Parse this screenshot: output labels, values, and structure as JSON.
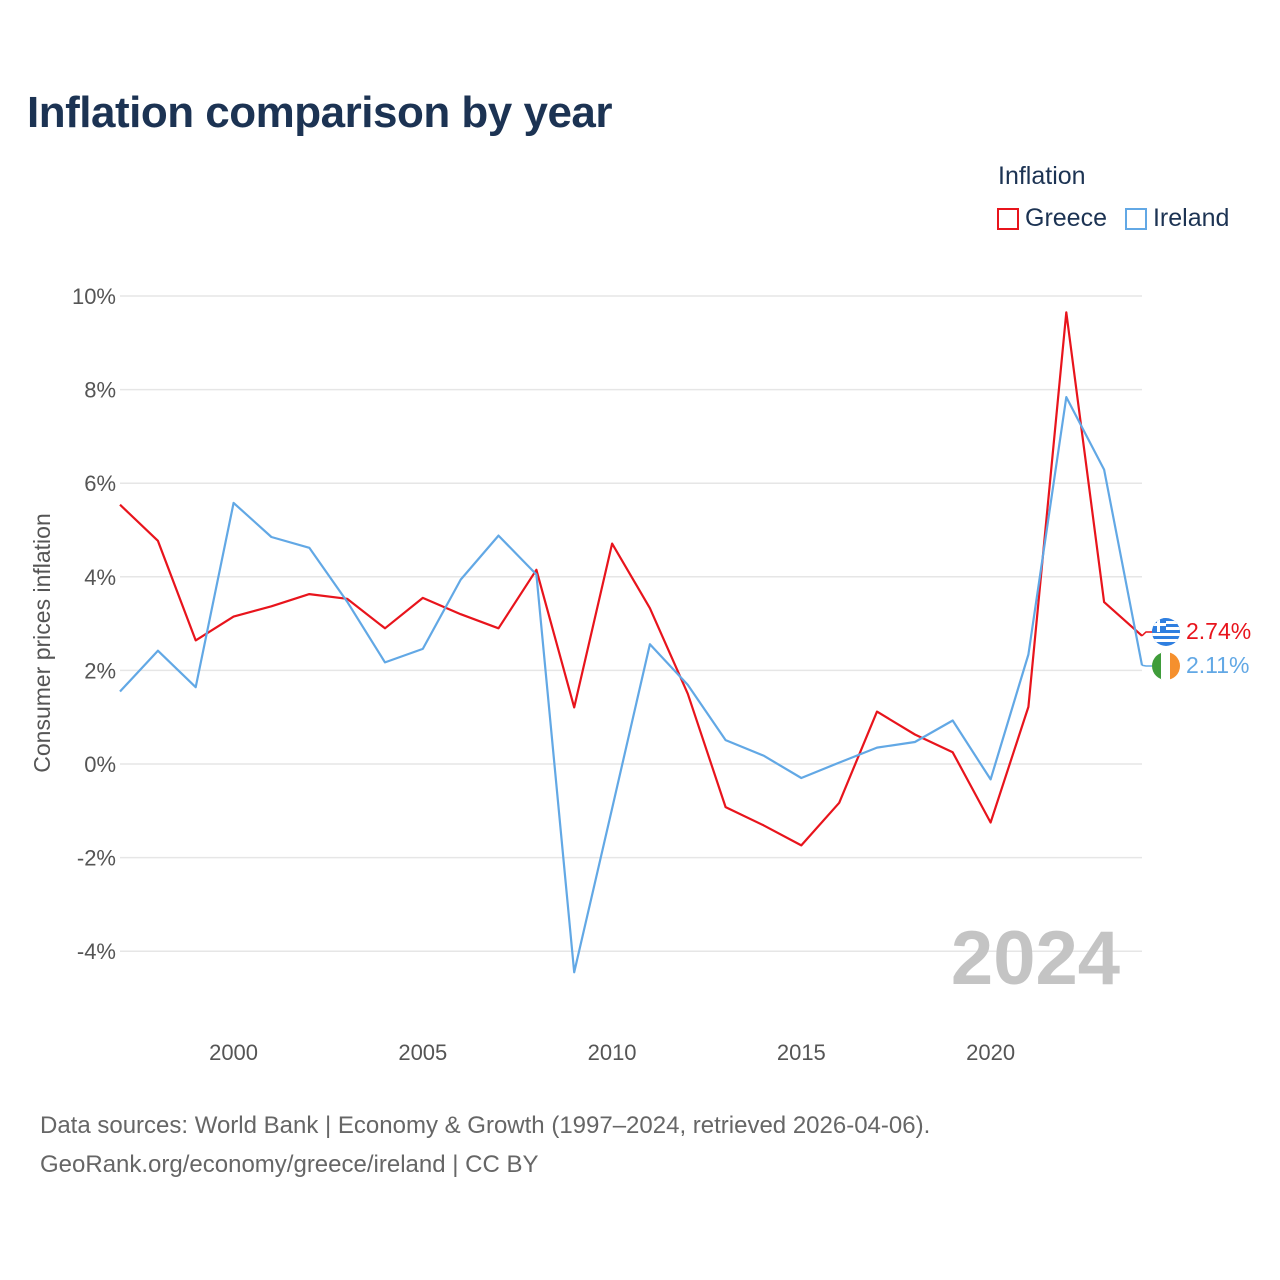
{
  "chart_data": {
    "type": "line",
    "title": "Inflation comparison by year",
    "legend_title": "Inflation",
    "ylabel": "Consumer prices inflation",
    "xlabel": "",
    "x": [
      1997,
      1998,
      1999,
      2000,
      2001,
      2002,
      2003,
      2004,
      2005,
      2006,
      2007,
      2008,
      2009,
      2010,
      2011,
      2012,
      2013,
      2014,
      2015,
      2016,
      2017,
      2018,
      2019,
      2020,
      2021,
      2022,
      2023,
      2024
    ],
    "xlim": [
      1997,
      2024
    ],
    "ylim": [
      -5,
      10
    ],
    "yticks": [
      10,
      8,
      6,
      4,
      2,
      0,
      -2,
      -4
    ],
    "ytick_labels": [
      "10%",
      "8%",
      "6%",
      "4%",
      "2%",
      "0%",
      "-2%",
      "-4%"
    ],
    "xticks": [
      2000,
      2005,
      2010,
      2015,
      2020
    ],
    "xtick_labels": [
      "2000",
      "2005",
      "2010",
      "2015",
      "2020"
    ],
    "grid": true,
    "legend_position": "top-right",
    "series": [
      {
        "name": "Greece",
        "color": "#e8141c",
        "flag": "greece-flag",
        "end_label": "2.74%",
        "values": [
          5.54,
          4.77,
          2.64,
          3.15,
          3.37,
          3.63,
          3.53,
          2.9,
          3.55,
          3.2,
          2.9,
          4.15,
          1.21,
          4.71,
          3.33,
          1.5,
          -0.92,
          -1.31,
          -1.74,
          -0.83,
          1.12,
          0.63,
          0.25,
          -1.25,
          1.22,
          9.65,
          3.46,
          2.74
        ]
      },
      {
        "name": "Ireland",
        "color": "#62a8e5",
        "flag": "ireland-flag",
        "end_label": "2.11%",
        "values": [
          1.55,
          2.42,
          1.64,
          5.58,
          4.85,
          4.62,
          3.47,
          2.17,
          2.46,
          3.94,
          4.88,
          4.05,
          -4.45,
          -0.95,
          2.56,
          1.69,
          0.51,
          0.18,
          -0.3,
          0.03,
          0.35,
          0.47,
          0.93,
          -0.33,
          2.34,
          7.84,
          6.29,
          2.11
        ]
      }
    ],
    "watermark": "2024",
    "footer_line1": "Data sources: World Bank | Economy & Growth (1997–2024, retrieved 2026-04-06).",
    "footer_line2": "GeoRank.org/economy/greece/ireland | CC BY"
  }
}
